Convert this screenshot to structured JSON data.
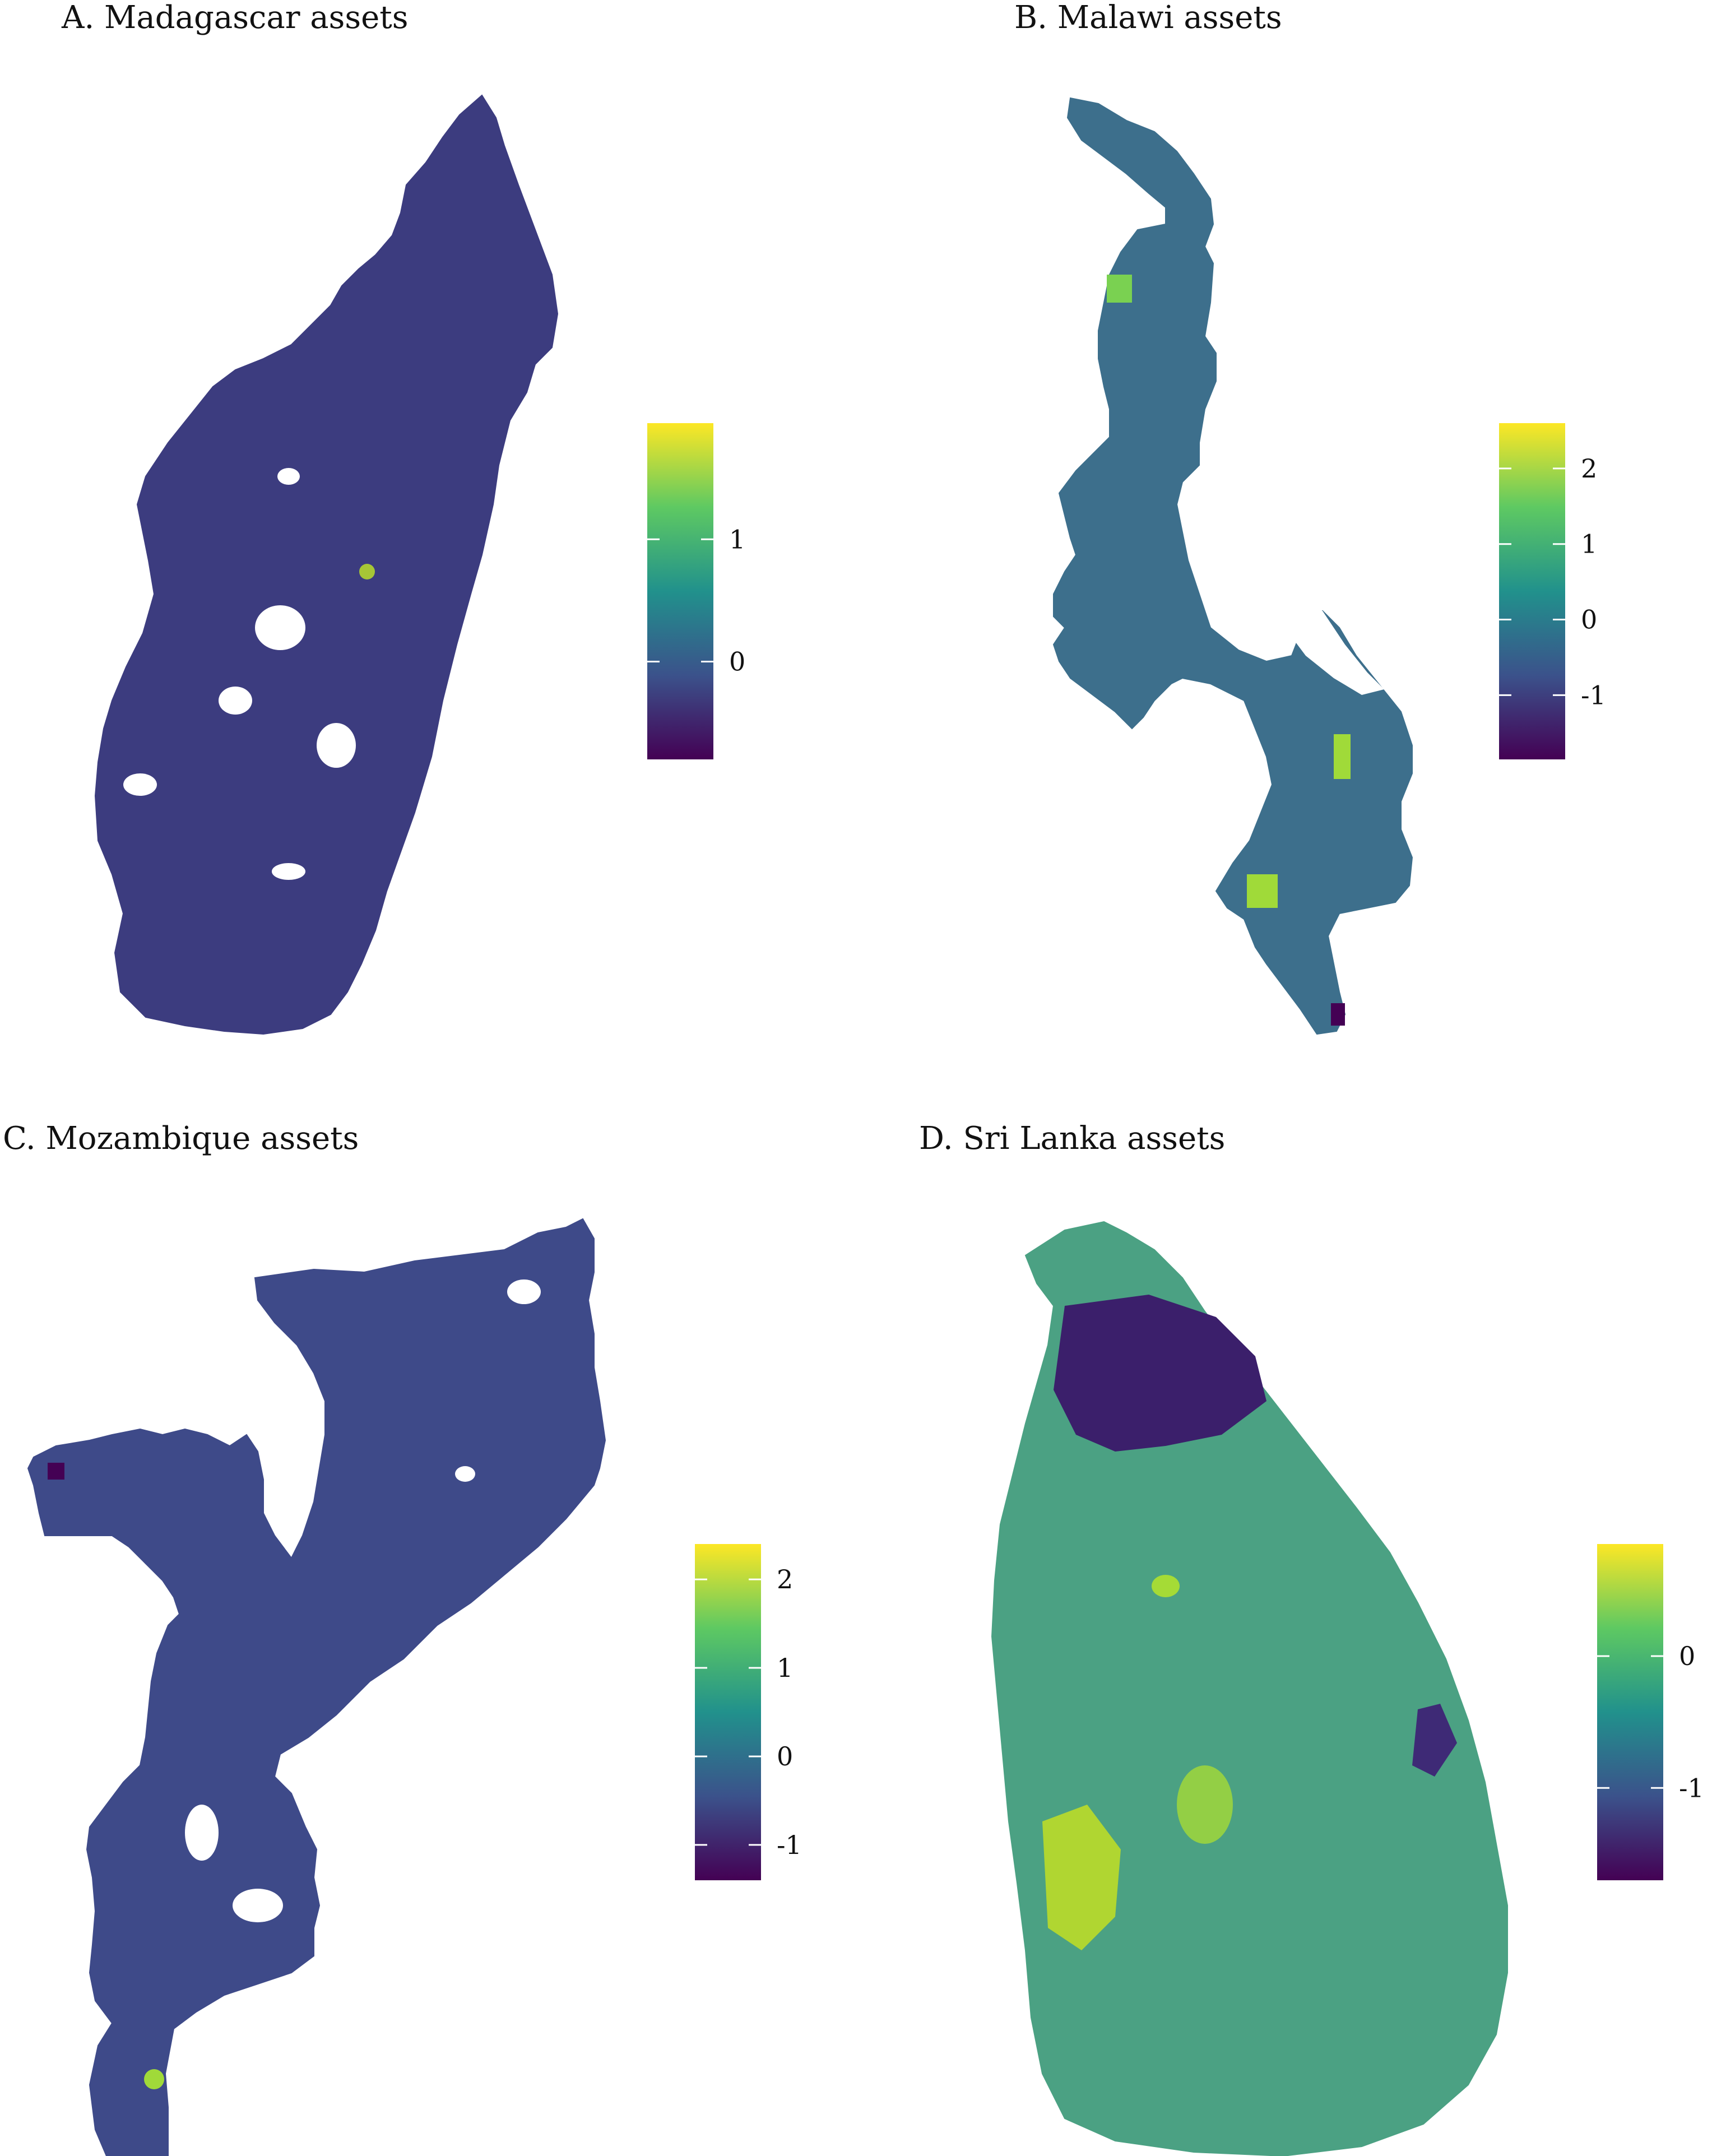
{
  "figure": {
    "panels": [
      {
        "id": "madagascar",
        "title": "A. Madagascar assets",
        "colorbar": {
          "palette": "viridis",
          "ticks": [
            {
              "value": 0,
              "label": "0"
            },
            {
              "value": 1,
              "label": "1"
            }
          ],
          "range": [
            -0.8,
            1.95
          ]
        },
        "map_fill": "#3c3c7f"
      },
      {
        "id": "malawi",
        "title": "B. Malawi assets",
        "colorbar": {
          "palette": "viridis",
          "ticks": [
            {
              "value": -1,
              "label": "-1"
            },
            {
              "value": 0,
              "label": "0"
            },
            {
              "value": 1,
              "label": "1"
            },
            {
              "value": 2,
              "label": "2"
            }
          ],
          "range": [
            -1.85,
            2.6
          ]
        },
        "map_fill": "#3d6f8c"
      },
      {
        "id": "mozambique",
        "title": "C. Mozambique assets",
        "colorbar": {
          "palette": "viridis",
          "ticks": [
            {
              "value": -1,
              "label": "-1"
            },
            {
              "value": 0,
              "label": "0"
            },
            {
              "value": 1,
              "label": "1"
            },
            {
              "value": 2,
              "label": "2"
            }
          ],
          "range": [
            -1.4,
            2.4
          ]
        },
        "map_fill": "#3e4a89"
      },
      {
        "id": "srilanka",
        "title": "D. Sri Lanka assets",
        "colorbar": {
          "palette": "viridis",
          "ticks": [
            {
              "value": -1,
              "label": "-1"
            },
            {
              "value": 0,
              "label": "0"
            }
          ],
          "range": [
            -1.7,
            0.85
          ]
        },
        "map_fill": "#4ba183"
      }
    ],
    "viridis_stops": [
      "#440154",
      "#3b528b",
      "#21918c",
      "#5ec962",
      "#fde725"
    ]
  }
}
